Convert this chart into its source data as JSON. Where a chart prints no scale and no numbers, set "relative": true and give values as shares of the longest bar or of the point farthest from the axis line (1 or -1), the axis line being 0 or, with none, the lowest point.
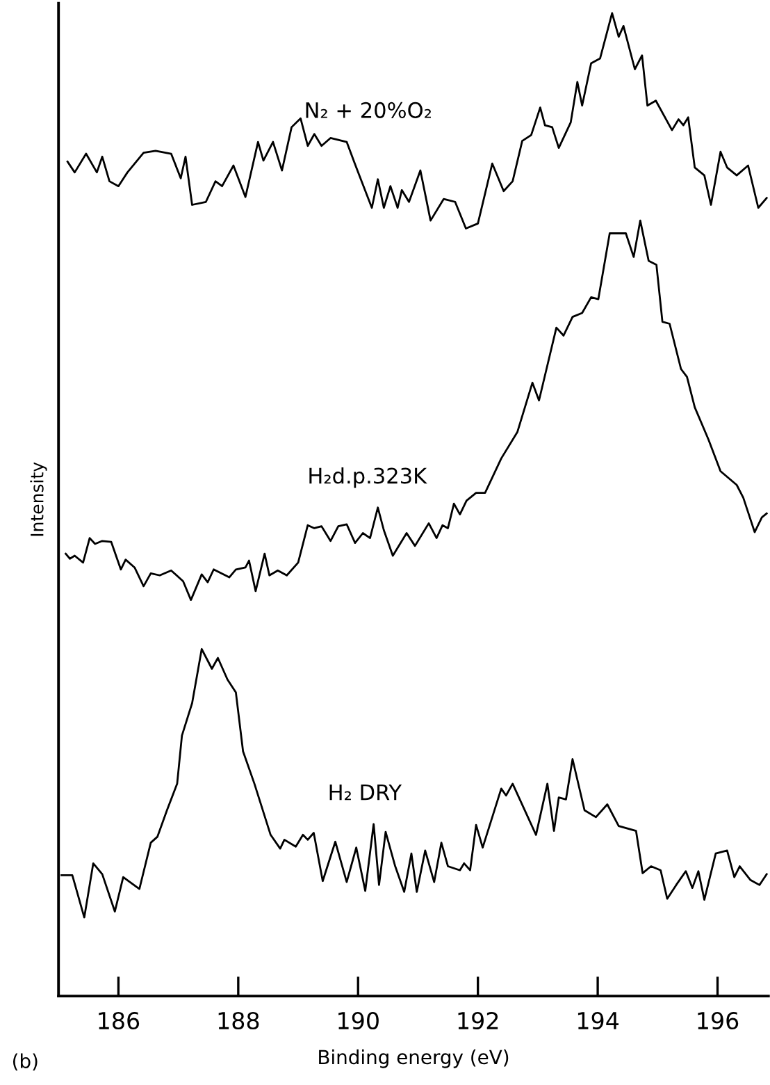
{
  "chart_data": {
    "type": "line",
    "xlabel": "Binding energy (eV)",
    "ylabel": "Intensity",
    "relative": true,
    "grid": false,
    "tick_labels": "x",
    "xlim": [
      185.0,
      196.85
    ],
    "xticks": [
      {
        "value": 186,
        "label": "186"
      },
      188,
      190,
      192,
      194,
      196
    ],
    "annotations": [
      "(b)"
    ],
    "series": [
      {
        "name": "N₂ + 20%O₂",
        "color": "#000000",
        "x": [
          185.15,
          185.27,
          185.46,
          185.64,
          185.73,
          185.85,
          186.0,
          186.15,
          186.42,
          186.62,
          186.88,
          187.04,
          187.12,
          187.23,
          187.46,
          187.62,
          187.73,
          187.92,
          188.12,
          188.33,
          188.42,
          188.58,
          188.73,
          188.89,
          189.04,
          189.16,
          189.27,
          189.39,
          189.54,
          189.81,
          189.97,
          190.23,
          190.33,
          190.43,
          190.54,
          190.66,
          190.73,
          190.85,
          191.04,
          191.21,
          191.43,
          191.62,
          191.8,
          192.0,
          192.24,
          192.43,
          192.58,
          192.74,
          192.89,
          193.04,
          193.12,
          193.24,
          193.35,
          193.55,
          193.66,
          193.74,
          193.89,
          194.04,
          194.24,
          194.35,
          194.43,
          194.62,
          194.74,
          194.83,
          194.97,
          195.24,
          195.35,
          195.43,
          195.51,
          195.62,
          195.78,
          195.89,
          196.05,
          196.16,
          196.32,
          196.51,
          196.68,
          196.82
        ],
        "values": [
          0.849,
          0.838,
          0.857,
          0.838,
          0.854,
          0.829,
          0.824,
          0.838,
          0.858,
          0.86,
          0.857,
          0.832,
          0.854,
          0.805,
          0.808,
          0.829,
          0.824,
          0.845,
          0.813,
          0.869,
          0.85,
          0.869,
          0.84,
          0.884,
          0.893,
          0.865,
          0.877,
          0.865,
          0.873,
          0.869,
          0.843,
          0.802,
          0.831,
          0.802,
          0.824,
          0.802,
          0.82,
          0.808,
          0.84,
          0.789,
          0.811,
          0.808,
          0.781,
          0.786,
          0.847,
          0.819,
          0.829,
          0.87,
          0.876,
          0.904,
          0.886,
          0.884,
          0.863,
          0.889,
          0.93,
          0.906,
          0.949,
          0.954,
          1.0,
          0.976,
          0.987,
          0.943,
          0.957,
          0.906,
          0.911,
          0.881,
          0.892,
          0.886,
          0.894,
          0.843,
          0.835,
          0.805,
          0.859,
          0.843,
          0.835,
          0.845,
          0.802,
          0.812
        ]
      },
      {
        "name": "H₂d.p.323K",
        "color": "#000000",
        "x": [
          185.12,
          185.19,
          185.27,
          185.41,
          185.52,
          185.61,
          185.73,
          185.88,
          186.04,
          186.12,
          186.27,
          186.42,
          186.54,
          186.69,
          186.88,
          187.08,
          187.21,
          187.39,
          187.49,
          187.59,
          187.85,
          187.96,
          188.12,
          188.18,
          188.29,
          188.44,
          188.52,
          188.66,
          188.81,
          189.0,
          189.16,
          189.27,
          189.39,
          189.54,
          189.67,
          189.81,
          189.95,
          190.08,
          190.2,
          190.33,
          190.43,
          190.58,
          190.81,
          190.95,
          191.18,
          191.31,
          191.41,
          191.5,
          191.6,
          191.7,
          191.81,
          191.97,
          192.12,
          192.39,
          192.66,
          192.91,
          193.02,
          193.31,
          193.43,
          193.58,
          193.74,
          193.89,
          194.01,
          194.2,
          194.47,
          194.6,
          194.71,
          194.85,
          194.98,
          195.08,
          195.2,
          195.39,
          195.49,
          195.62,
          195.85,
          196.05,
          196.32,
          196.43,
          196.62,
          196.74,
          196.82
        ],
        "values": [
          0.45,
          0.445,
          0.448,
          0.441,
          0.466,
          0.46,
          0.463,
          0.462,
          0.434,
          0.444,
          0.436,
          0.417,
          0.43,
          0.428,
          0.433,
          0.422,
          0.403,
          0.429,
          0.421,
          0.434,
          0.426,
          0.434,
          0.436,
          0.443,
          0.412,
          0.45,
          0.428,
          0.433,
          0.428,
          0.441,
          0.479,
          0.476,
          0.478,
          0.463,
          0.478,
          0.48,
          0.461,
          0.471,
          0.466,
          0.497,
          0.474,
          0.448,
          0.471,
          0.458,
          0.481,
          0.466,
          0.479,
          0.476,
          0.501,
          0.49,
          0.504,
          0.512,
          0.512,
          0.547,
          0.574,
          0.624,
          0.606,
          0.68,
          0.672,
          0.691,
          0.695,
          0.711,
          0.709,
          0.776,
          0.776,
          0.752,
          0.789,
          0.748,
          0.744,
          0.686,
          0.684,
          0.638,
          0.63,
          0.599,
          0.566,
          0.534,
          0.52,
          0.507,
          0.472,
          0.487,
          0.491
        ]
      },
      {
        "name": "H₂ DRY",
        "color": "#000000",
        "x": [
          185.05,
          185.23,
          185.43,
          185.58,
          185.73,
          185.94,
          186.08,
          186.19,
          186.35,
          186.54,
          186.65,
          186.81,
          186.98,
          187.06,
          187.23,
          187.39,
          187.56,
          187.66,
          187.82,
          187.96,
          188.08,
          188.27,
          188.54,
          188.7,
          188.77,
          188.96,
          189.08,
          189.16,
          189.26,
          189.41,
          189.62,
          189.81,
          189.97,
          190.12,
          190.26,
          190.35,
          190.46,
          190.62,
          190.77,
          190.89,
          190.98,
          191.12,
          191.27,
          191.39,
          191.5,
          191.7,
          191.77,
          191.87,
          191.97,
          192.08,
          192.39,
          192.47,
          192.58,
          192.97,
          193.16,
          193.27,
          193.35,
          193.47,
          193.58,
          193.78,
          193.97,
          194.16,
          194.35,
          194.64,
          194.75,
          194.89,
          195.05,
          195.16,
          195.31,
          195.47,
          195.58,
          195.68,
          195.78,
          195.97,
          196.16,
          196.28,
          196.37,
          196.55,
          196.7,
          196.82
        ],
        "values": [
          0.123,
          0.123,
          0.08,
          0.135,
          0.124,
          0.086,
          0.121,
          0.116,
          0.109,
          0.156,
          0.162,
          0.189,
          0.216,
          0.265,
          0.298,
          0.353,
          0.333,
          0.344,
          0.322,
          0.309,
          0.249,
          0.216,
          0.164,
          0.15,
          0.159,
          0.152,
          0.164,
          0.159,
          0.166,
          0.117,
          0.157,
          0.116,
          0.151,
          0.107,
          0.175,
          0.113,
          0.167,
          0.132,
          0.106,
          0.145,
          0.106,
          0.148,
          0.116,
          0.156,
          0.132,
          0.128,
          0.135,
          0.128,
          0.174,
          0.151,
          0.211,
          0.204,
          0.216,
          0.164,
          0.216,
          0.168,
          0.202,
          0.2,
          0.241,
          0.189,
          0.182,
          0.195,
          0.173,
          0.168,
          0.125,
          0.132,
          0.128,
          0.099,
          0.113,
          0.127,
          0.11,
          0.127,
          0.098,
          0.145,
          0.148,
          0.121,
          0.132,
          0.118,
          0.113,
          0.124
        ]
      }
    ]
  }
}
